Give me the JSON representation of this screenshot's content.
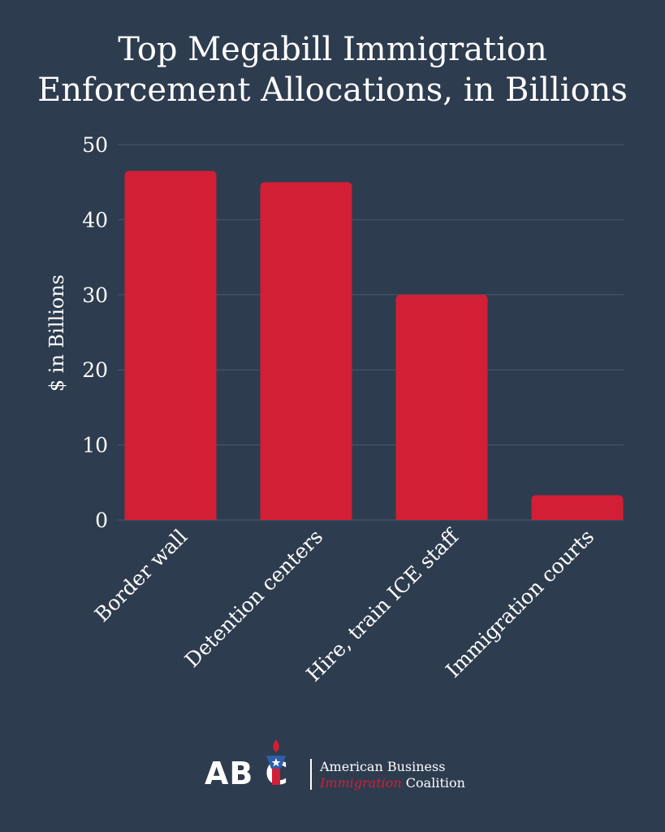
{
  "chart_data": {
    "type": "bar",
    "title_lines": [
      "Top Megabill Immigration",
      "Enforcement Allocations, in Billions"
    ],
    "ylabel": "$ in Billions",
    "categories": [
      "Border wall",
      "Detention centers",
      "Hire, train ICE staff",
      "Immigration courts"
    ],
    "values": [
      46.5,
      45,
      30,
      3.3
    ],
    "ylim": [
      0,
      50
    ],
    "yticks": [
      0,
      10,
      20,
      30,
      40,
      50
    ],
    "grid": true,
    "bar_color": "#d21f36",
    "grid_color": "#4a5a6e"
  },
  "branding": {
    "logo_letters": "AB C",
    "line1": "American Business",
    "line2_highlight": "Immigration",
    "line2_rest": " Coalition",
    "accent_color": "#d21f36"
  }
}
